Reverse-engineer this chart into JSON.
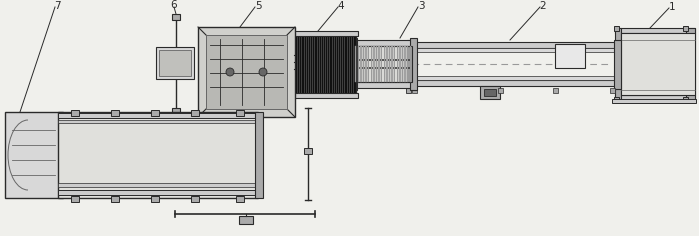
{
  "bg_color": "#f0f0ec",
  "dc": "#2a2a2a",
  "mc": "#666666",
  "lc": "#999999",
  "fc_light": "#e0e0dc",
  "fc_mid": "#cccccc",
  "fc_dark": "#aaaaaa",
  "fc_vdark": "#333333",
  "fig_width": 6.99,
  "fig_height": 2.36,
  "dpi": 100
}
